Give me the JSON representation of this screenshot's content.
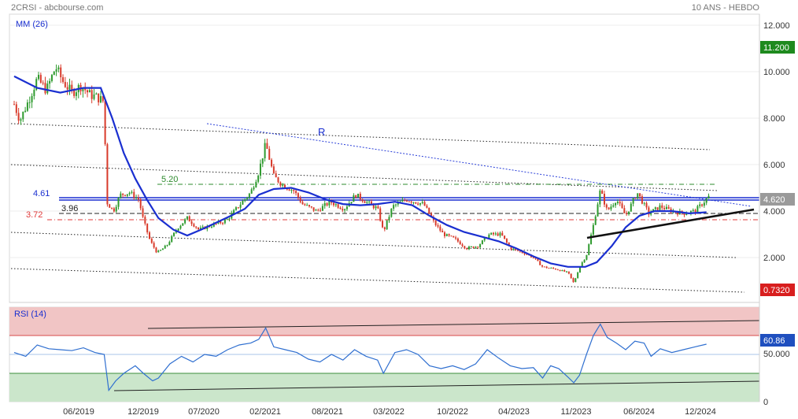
{
  "header": {
    "left_title": "2CRSI - abcbourse.com",
    "right_title": "10 ANS - HEBDO"
  },
  "legend": {
    "ma_label": "MM (26)",
    "rsi_label": "RSI (14)"
  },
  "colors": {
    "up_candle": "#2e9a2e",
    "down_candle": "#d83a2a",
    "ma_line": "#1a2fd0",
    "rsi_line": "#2f6fd0",
    "resistance_blue": "#1a2fd0",
    "support_red": "#e03a3a",
    "level_green": "#2e8b2e",
    "rsi_overbought_fill": "#f0c4c4",
    "rsi_oversold_fill": "#c8e4c8",
    "price_badge": "#9a9a9a",
    "high_badge": "#1e8a1e",
    "low_badge": "#d81e1e",
    "rsi_badge": "#1f4fbf"
  },
  "price_axis": {
    "ticks": [
      "12.000",
      "10.000",
      "8.000",
      "6.000",
      "4.000",
      "2.000"
    ]
  },
  "rsi_axis": {
    "ticks": [
      "50.000",
      "0"
    ]
  },
  "badges": {
    "high": "11.200",
    "last": "4.620",
    "low": "0.7320",
    "rsi": "60.86"
  },
  "annotations": {
    "r_label": "R",
    "level_520": "5.20",
    "level_461": "4.61",
    "level_396": "3.96",
    "level_372": "3.72"
  },
  "x_axis": {
    "ticks": [
      "06/2019",
      "12/2019",
      "07/2020",
      "02/2021",
      "08/2021",
      "03/2022",
      "10/2022",
      "04/2023",
      "11/2023",
      "06/2024",
      "12/2024"
    ]
  },
  "chart_data": {
    "type": "candlestick",
    "title": "2CRSI - abcbourse.com",
    "subtitle": "10 ANS - HEBDO",
    "ylim": [
      0,
      12.5
    ],
    "rsi_ylim": [
      0,
      100
    ],
    "price_path": [
      [
        2019.0,
        8.6
      ],
      [
        2019.05,
        7.9
      ],
      [
        2019.12,
        8.7
      ],
      [
        2019.2,
        9.7
      ],
      [
        2019.28,
        9.2
      ],
      [
        2019.36,
        10.2
      ],
      [
        2019.42,
        9.6
      ],
      [
        2019.5,
        9.1
      ],
      [
        2019.58,
        9.4
      ],
      [
        2019.66,
        9.0
      ],
      [
        2019.72,
        8.9
      ],
      [
        2019.78,
        8.7
      ],
      [
        2019.8,
        4.4
      ],
      [
        2019.86,
        4.0
      ],
      [
        2019.92,
        4.7
      ],
      [
        2020.0,
        4.8
      ],
      [
        2020.08,
        4.5
      ],
      [
        2020.12,
        3.6
      ],
      [
        2020.18,
        2.7
      ],
      [
        2020.24,
        2.2
      ],
      [
        2020.32,
        2.5
      ],
      [
        2020.42,
        3.3
      ],
      [
        2020.5,
        3.7
      ],
      [
        2020.6,
        3.2
      ],
      [
        2020.72,
        3.4
      ],
      [
        2020.84,
        3.6
      ],
      [
        2020.96,
        4.3
      ],
      [
        2021.05,
        4.8
      ],
      [
        2021.12,
        5.7
      ],
      [
        2021.18,
        6.9
      ],
      [
        2021.25,
        5.5
      ],
      [
        2021.33,
        5.1
      ],
      [
        2021.42,
        4.9
      ],
      [
        2021.5,
        4.3
      ],
      [
        2021.62,
        4.0
      ],
      [
        2021.74,
        4.4
      ],
      [
        2021.86,
        4.1
      ],
      [
        2021.96,
        4.7
      ],
      [
        2022.05,
        4.4
      ],
      [
        2022.15,
        4.1
      ],
      [
        2022.2,
        3.1
      ],
      [
        2022.28,
        4.2
      ],
      [
        2022.4,
        4.5
      ],
      [
        2022.55,
        4.3
      ],
      [
        2022.64,
        3.5
      ],
      [
        2022.72,
        3.0
      ],
      [
        2022.82,
        2.8
      ],
      [
        2022.92,
        2.4
      ],
      [
        2023.02,
        2.5
      ],
      [
        2023.12,
        3.0
      ],
      [
        2023.22,
        3.0
      ],
      [
        2023.3,
        2.4
      ],
      [
        2023.42,
        2.2
      ],
      [
        2023.5,
        2.0
      ],
      [
        2023.58,
        1.6
      ],
      [
        2023.7,
        1.5
      ],
      [
        2023.8,
        1.35
      ],
      [
        2023.85,
        0.9
      ],
      [
        2023.9,
        1.6
      ],
      [
        2023.96,
        2.1
      ],
      [
        2024.02,
        3.4
      ],
      [
        2024.08,
        4.9
      ],
      [
        2024.14,
        4.0
      ],
      [
        2024.22,
        4.5
      ],
      [
        2024.3,
        3.8
      ],
      [
        2024.4,
        4.8
      ],
      [
        2024.5,
        3.9
      ],
      [
        2024.6,
        4.2
      ],
      [
        2024.7,
        4.0
      ],
      [
        2024.8,
        3.9
      ],
      [
        2024.9,
        4.0
      ],
      [
        2024.96,
        4.3
      ],
      [
        2025.02,
        4.62
      ]
    ],
    "ma26_path": [
      [
        2019.0,
        9.8
      ],
      [
        2019.2,
        9.3
      ],
      [
        2019.4,
        9.1
      ],
      [
        2019.6,
        9.3
      ],
      [
        2019.75,
        9.3
      ],
      [
        2019.85,
        8.0
      ],
      [
        2019.95,
        6.5
      ],
      [
        2020.05,
        5.4
      ],
      [
        2020.15,
        4.5
      ],
      [
        2020.25,
        3.7
      ],
      [
        2020.38,
        3.2
      ],
      [
        2020.5,
        2.95
      ],
      [
        2020.62,
        3.2
      ],
      [
        2020.75,
        3.5
      ],
      [
        2020.88,
        3.8
      ],
      [
        2021.0,
        4.1
      ],
      [
        2021.12,
        4.7
      ],
      [
        2021.25,
        4.95
      ],
      [
        2021.4,
        5.0
      ],
      [
        2021.55,
        4.8
      ],
      [
        2021.7,
        4.5
      ],
      [
        2021.85,
        4.3
      ],
      [
        2022.0,
        4.25
      ],
      [
        2022.15,
        4.3
      ],
      [
        2022.3,
        4.4
      ],
      [
        2022.45,
        4.25
      ],
      [
        2022.6,
        3.8
      ],
      [
        2022.75,
        3.4
      ],
      [
        2022.9,
        3.1
      ],
      [
        2023.05,
        2.9
      ],
      [
        2023.2,
        2.7
      ],
      [
        2023.35,
        2.4
      ],
      [
        2023.5,
        2.05
      ],
      [
        2023.65,
        1.75
      ],
      [
        2023.8,
        1.6
      ],
      [
        2023.95,
        1.6
      ],
      [
        2024.05,
        1.8
      ],
      [
        2024.18,
        2.5
      ],
      [
        2024.3,
        3.3
      ],
      [
        2024.42,
        3.8
      ],
      [
        2024.55,
        4.0
      ],
      [
        2024.7,
        4.0
      ],
      [
        2024.85,
        3.9
      ],
      [
        2025.0,
        3.95
      ]
    ],
    "rsi_path": [
      [
        2019.0,
        52
      ],
      [
        2019.1,
        48
      ],
      [
        2019.2,
        60
      ],
      [
        2019.3,
        56
      ],
      [
        2019.4,
        55
      ],
      [
        2019.5,
        54
      ],
      [
        2019.6,
        57
      ],
      [
        2019.7,
        52
      ],
      [
        2019.78,
        50
      ],
      [
        2019.82,
        12
      ],
      [
        2019.88,
        22
      ],
      [
        2019.95,
        30
      ],
      [
        2020.05,
        38
      ],
      [
        2020.12,
        30
      ],
      [
        2020.2,
        22
      ],
      [
        2020.25,
        25
      ],
      [
        2020.35,
        40
      ],
      [
        2020.45,
        48
      ],
      [
        2020.55,
        42
      ],
      [
        2020.65,
        50
      ],
      [
        2020.75,
        48
      ],
      [
        2020.85,
        55
      ],
      [
        2020.95,
        60
      ],
      [
        2021.05,
        62
      ],
      [
        2021.12,
        66
      ],
      [
        2021.18,
        78
      ],
      [
        2021.25,
        58
      ],
      [
        2021.35,
        55
      ],
      [
        2021.45,
        52
      ],
      [
        2021.55,
        45
      ],
      [
        2021.65,
        42
      ],
      [
        2021.75,
        50
      ],
      [
        2021.85,
        44
      ],
      [
        2021.95,
        55
      ],
      [
        2022.05,
        48
      ],
      [
        2022.15,
        44
      ],
      [
        2022.2,
        30
      ],
      [
        2022.3,
        52
      ],
      [
        2022.4,
        55
      ],
      [
        2022.5,
        50
      ],
      [
        2022.6,
        38
      ],
      [
        2022.7,
        35
      ],
      [
        2022.8,
        38
      ],
      [
        2022.9,
        34
      ],
      [
        2023.0,
        40
      ],
      [
        2023.1,
        55
      ],
      [
        2023.2,
        46
      ],
      [
        2023.3,
        38
      ],
      [
        2023.4,
        35
      ],
      [
        2023.5,
        36
      ],
      [
        2023.58,
        25
      ],
      [
        2023.65,
        38
      ],
      [
        2023.72,
        35
      ],
      [
        2023.8,
        26
      ],
      [
        2023.85,
        20
      ],
      [
        2023.9,
        28
      ],
      [
        2023.96,
        50
      ],
      [
        2024.02,
        70
      ],
      [
        2024.08,
        82
      ],
      [
        2024.14,
        68
      ],
      [
        2024.22,
        62
      ],
      [
        2024.3,
        55
      ],
      [
        2024.38,
        64
      ],
      [
        2024.46,
        62
      ],
      [
        2024.52,
        48
      ],
      [
        2024.6,
        56
      ],
      [
        2024.7,
        52
      ],
      [
        2024.8,
        55
      ],
      [
        2024.9,
        58
      ],
      [
        2025.0,
        60.86
      ]
    ]
  }
}
